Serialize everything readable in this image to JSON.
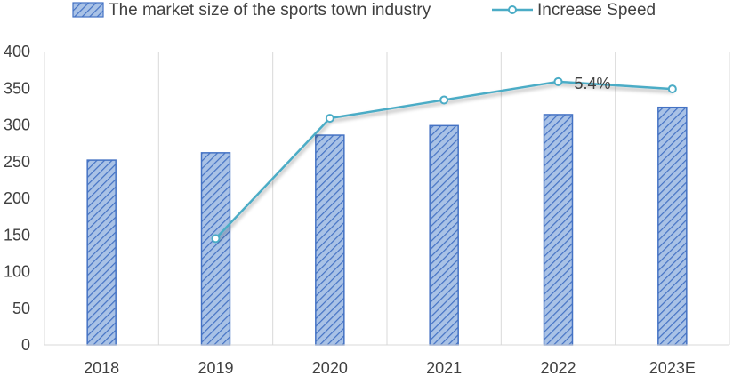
{
  "chart_data": {
    "type": "bar",
    "categories": [
      "2018",
      "2019",
      "2020",
      "2021",
      "2022",
      "2023E"
    ],
    "series": [
      {
        "name": "The market size of the sports town industry",
        "type": "bar",
        "values": [
          252,
          262,
          286,
          299,
          314,
          324
        ]
      },
      {
        "name": "Increase Speed",
        "type": "line",
        "values": [
          null,
          145,
          309,
          334,
          359,
          349
        ]
      }
    ],
    "data_labels": [
      {
        "series": 1,
        "category": "2022",
        "text": "5.4%"
      }
    ],
    "yticks": [
      0,
      50,
      100,
      150,
      200,
      250,
      300,
      350,
      400
    ],
    "ylim": [
      0,
      400
    ],
    "grid": {
      "x": true,
      "y": false
    },
    "legend_position": "top",
    "colors": {
      "bar_fill": "#a9c2e6",
      "bar_stripe": "#4472c4",
      "bar_border": "#4472c4",
      "line": "#4bacc6",
      "marker_fill": "#ffffff",
      "grid": "#d9d9d9",
      "text": "#404040"
    }
  }
}
